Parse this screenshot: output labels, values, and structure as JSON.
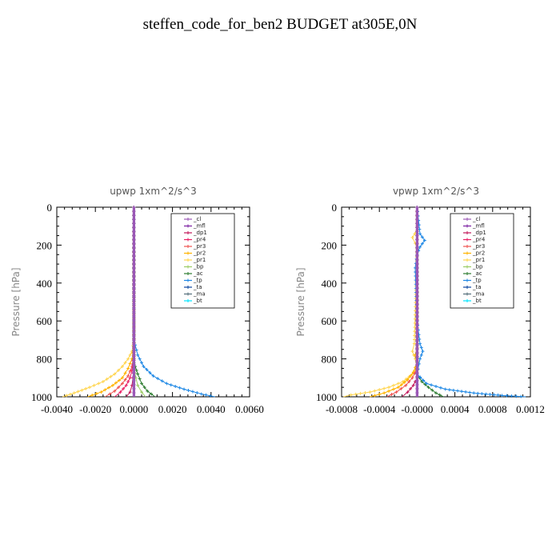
{
  "page_title": "steffen_code_for_ben2  BUDGET at305E,0N",
  "legend_entries": [
    {
      "label": "_cl",
      "color": "#9b59b6"
    },
    {
      "label": "_mfl",
      "color": "#7b1fa2"
    },
    {
      "label": "_dp1",
      "color": "#c2185b"
    },
    {
      "label": "_pr4",
      "color": "#e91e63"
    },
    {
      "label": "_pr3",
      "color": "#ef5350"
    },
    {
      "label": "_pr2",
      "color": "#ffb300"
    },
    {
      "label": "_pr1",
      "color": "#ffd54f"
    },
    {
      "label": "_bp",
      "color": "#9ccc65"
    },
    {
      "label": "_ac",
      "color": "#2e7d32"
    },
    {
      "label": "_tp",
      "color": "#1e88e5"
    },
    {
      "label": "_ta",
      "color": "#0d47a1"
    },
    {
      "label": "_ma",
      "color": "#546e7a"
    },
    {
      "label": "_bt",
      "color": "#00e5ff"
    }
  ],
  "chart_data": [
    {
      "type": "line",
      "title": "upwp   1xm^2/s^3",
      "ylabel": "Pressure  [hPa]",
      "xlim": [
        -0.004,
        0.006
      ],
      "ylim": [
        1000,
        0
      ],
      "y_inverted": true,
      "x_ticks": [
        "-0.0040",
        "-0.0020",
        "0.0000",
        "0.0020",
        "0.0040",
        "0.0060"
      ],
      "y_ticks": [
        "0",
        "200",
        "400",
        "600",
        "800",
        "1000"
      ],
      "legend_position": "top-right",
      "series": [
        {
          "name": "_pr1",
          "color": "#ffd54f",
          "x": [
            0,
            0,
            -0.0001,
            -0.0003,
            -0.0006,
            -0.001,
            -0.0016,
            -0.0023,
            -0.0031,
            -0.0037
          ],
          "y": [
            0,
            700,
            760,
            800,
            840,
            880,
            920,
            950,
            980,
            1000
          ]
        },
        {
          "name": "_pr2",
          "color": "#ffb300",
          "x": [
            0,
            0,
            -0.0001,
            -0.0003,
            -0.0006,
            -0.0011,
            -0.0017,
            -0.0024
          ],
          "y": [
            0,
            740,
            800,
            850,
            900,
            940,
            975,
            1000
          ]
        },
        {
          "name": "_pr3",
          "color": "#ef5350",
          "x": [
            0,
            0,
            -0.0001,
            -0.0003,
            -0.0006,
            -0.001,
            -0.0015
          ],
          "y": [
            0,
            780,
            840,
            890,
            930,
            970,
            1000
          ]
        },
        {
          "name": "_pr4",
          "color": "#e91e63",
          "x": [
            0,
            0,
            -0.0001,
            -0.0002,
            -0.0004,
            -0.0007,
            -0.001
          ],
          "y": [
            0,
            800,
            860,
            900,
            940,
            975,
            1000
          ]
        },
        {
          "name": "_dp1",
          "color": "#c2185b",
          "x": [
            0,
            0,
            -5e-05,
            -0.0001,
            -0.0002,
            -0.0004
          ],
          "y": [
            0,
            850,
            900,
            940,
            975,
            1000
          ]
        },
        {
          "name": "_bp",
          "color": "#9ccc65",
          "x": [
            0,
            0,
            0.0001,
            0.0002,
            0.0004,
            0.0006
          ],
          "y": [
            0,
            850,
            900,
            940,
            975,
            1000
          ]
        },
        {
          "name": "_ac",
          "color": "#2e7d32",
          "x": [
            0,
            0,
            0.0002,
            0.0004,
            0.0007,
            0.0011
          ],
          "y": [
            0,
            820,
            880,
            930,
            970,
            1000
          ]
        },
        {
          "name": "_tp",
          "color": "#1e88e5",
          "x": [
            0,
            0,
            0.0002,
            0.0005,
            0.001,
            0.0017,
            0.0026,
            0.0035,
            0.0042
          ],
          "y": [
            0,
            700,
            780,
            840,
            890,
            930,
            960,
            985,
            1000
          ]
        },
        {
          "name": "_mfl",
          "color": "#7b1fa2",
          "x": [
            0,
            0
          ],
          "y": [
            0,
            1000
          ]
        },
        {
          "name": "_cl",
          "color": "#9b59b6",
          "x": [
            0,
            0
          ],
          "y": [
            0,
            1000
          ]
        }
      ]
    },
    {
      "type": "line",
      "title": "vpwp   1xm^2/s^3",
      "ylabel": "Pressure  [hPa]",
      "xlim": [
        -0.0008,
        0.0012
      ],
      "ylim": [
        1000,
        0
      ],
      "y_inverted": true,
      "x_ticks": [
        "-0.0008",
        "-0.0004",
        "-0.0000",
        "0.0004",
        "0.0008",
        "0.0012"
      ],
      "y_ticks": [
        "0",
        "200",
        "400",
        "600",
        "800",
        "1000"
      ],
      "legend_position": "top-right",
      "series": [
        {
          "name": "_pr1",
          "color": "#ffd54f",
          "x": [
            0,
            0,
            -5e-05,
            -2e-05,
            0,
            -3e-05,
            -5e-05,
            -2e-05,
            0,
            -5e-05,
            -0.00015,
            -0.0003,
            -0.0005,
            -0.0007,
            -0.00078
          ],
          "y": [
            0,
            120,
            160,
            190,
            220,
            720,
            760,
            800,
            840,
            880,
            920,
            950,
            975,
            990,
            1000
          ]
        },
        {
          "name": "_pr2",
          "color": "#ffb300",
          "x": [
            0,
            0,
            -2e-05,
            0,
            -4e-05,
            -0.0001,
            -0.0002,
            -0.00035,
            -0.0005
          ],
          "y": [
            0,
            740,
            780,
            820,
            870,
            910,
            950,
            980,
            1000
          ]
        },
        {
          "name": "_pr3",
          "color": "#ef5350",
          "x": [
            0,
            0,
            -5e-05,
            -0.00012,
            -0.00022,
            -0.00032
          ],
          "y": [
            0,
            850,
            900,
            940,
            975,
            1000
          ]
        },
        {
          "name": "_dp1",
          "color": "#c2185b",
          "x": [
            0,
            0,
            -4e-05,
            -0.0001,
            -0.00016
          ],
          "y": [
            0,
            900,
            940,
            975,
            1000
          ]
        },
        {
          "name": "_ac",
          "color": "#2e7d32",
          "x": [
            0,
            0,
            5e-05,
            0.00012,
            0.0002,
            0.00028
          ],
          "y": [
            0,
            880,
            920,
            950,
            980,
            1000
          ]
        },
        {
          "name": "_tp",
          "color": "#1e88e5",
          "x": [
            0,
            3e-05,
            8e-05,
            3e-05,
            0,
            -2e-05,
            0,
            3e-05,
            6e-05,
            3e-05,
            0,
            0.0001,
            0.0003,
            0.0006,
            0.0009,
            0.00115
          ],
          "y": [
            0,
            140,
            175,
            210,
            250,
            320,
            600,
            720,
            760,
            800,
            880,
            930,
            960,
            980,
            993,
            1000
          ]
        },
        {
          "name": "_mfl",
          "color": "#7b1fa2",
          "x": [
            0,
            0
          ],
          "y": [
            0,
            1000
          ]
        },
        {
          "name": "_cl",
          "color": "#9b59b6",
          "x": [
            0,
            0
          ],
          "y": [
            0,
            1000
          ]
        }
      ]
    }
  ]
}
